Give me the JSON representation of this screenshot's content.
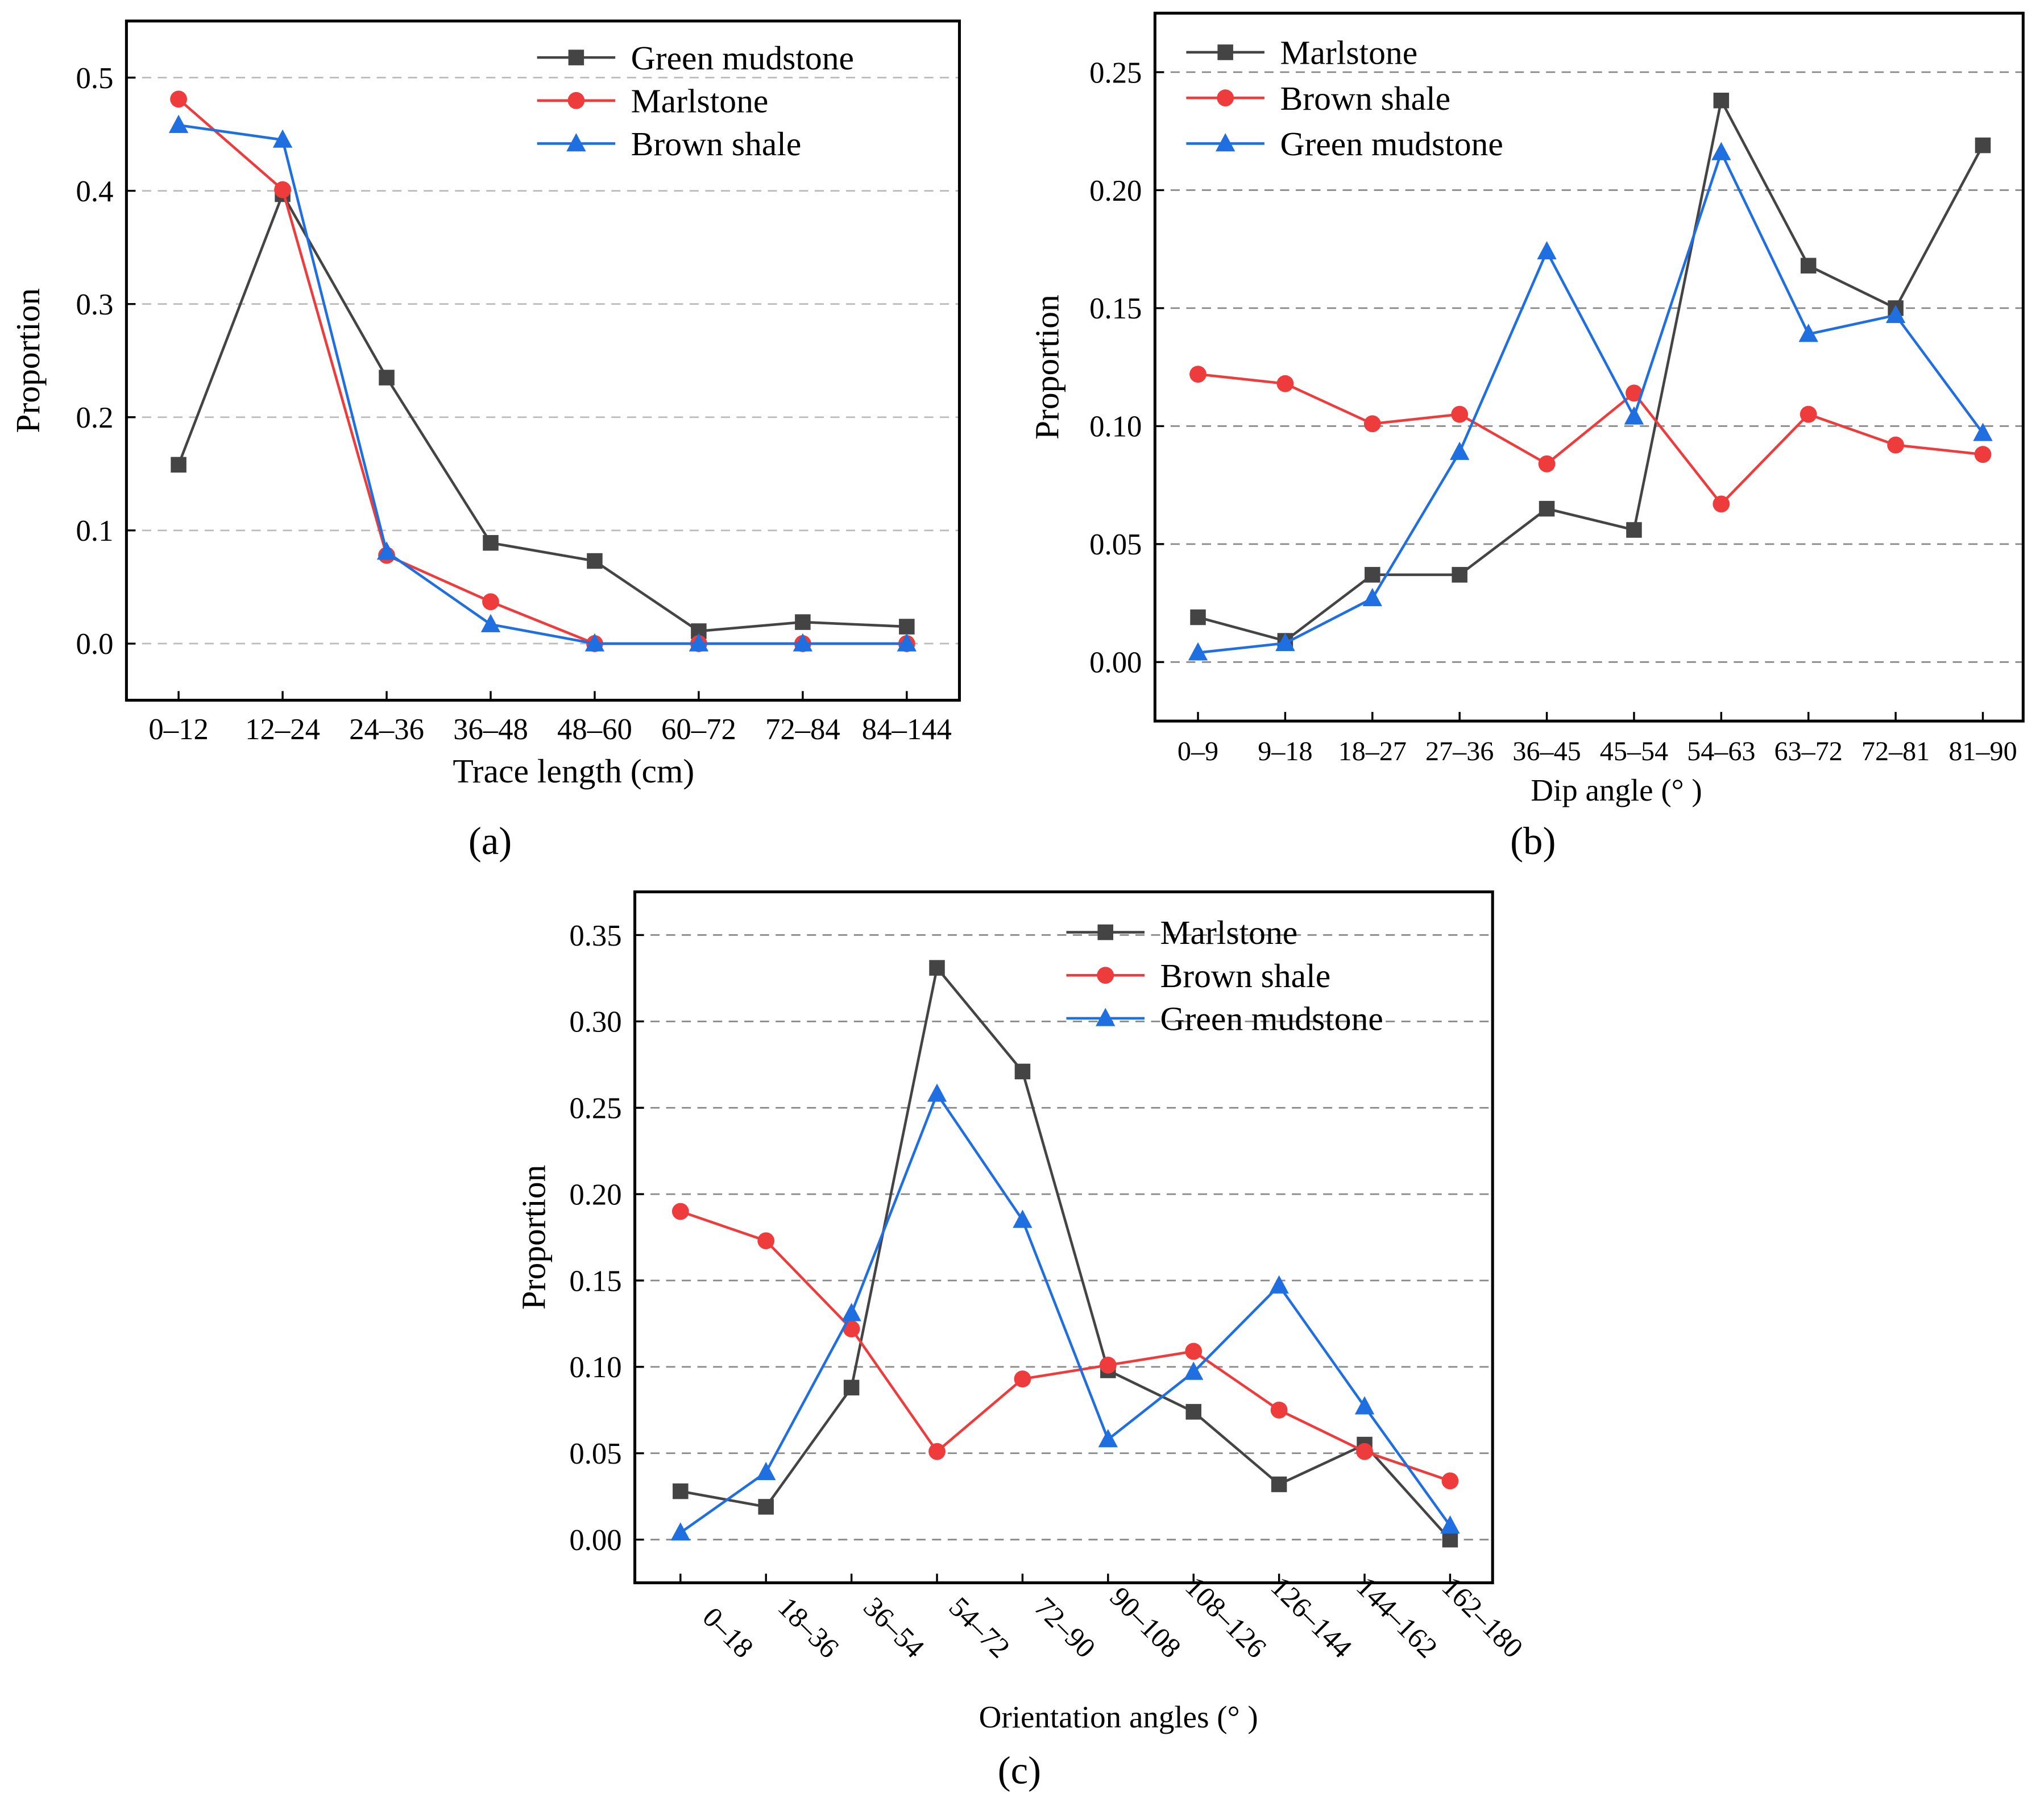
{
  "colors": {
    "black": "#444444",
    "red": "#ee3b3b",
    "blue": "#1f6fe0"
  },
  "chart_data": [
    {
      "type": "line",
      "panel_label": "(a)",
      "xlabel": "Trace length (cm)",
      "ylabel": "Proportion",
      "categories": [
        "0–12",
        "12–24",
        "24–36",
        "36–48",
        "48–60",
        "60–72",
        "72–84",
        "84–144"
      ],
      "ylim": [
        -0.05,
        0.55
      ],
      "yticks": [
        "0.0",
        "0.1",
        "0.2",
        "0.3",
        "0.4",
        "0.5"
      ],
      "ytick_values": [
        0,
        0.1,
        0.2,
        0.3,
        0.4,
        0.5
      ],
      "grid": true,
      "legend": "top-right",
      "series": [
        {
          "name": "Green mudstone",
          "marker": "square",
          "color": "black",
          "values": [
            0.158,
            0.397,
            0.235,
            0.089,
            0.073,
            0.011,
            0.019,
            0.015
          ]
        },
        {
          "name": "Marlstone",
          "marker": "circle",
          "color": "red",
          "values": [
            0.481,
            0.401,
            0.078,
            0.037,
            0,
            0,
            0,
            0
          ]
        },
        {
          "name": "Brown shale",
          "marker": "triangle",
          "color": "blue",
          "values": [
            0.458,
            0.445,
            0.081,
            0.017,
            0,
            0,
            0,
            0
          ]
        }
      ]
    },
    {
      "type": "line",
      "panel_label": "(b)",
      "xlabel": "Dip angle (° )",
      "ylabel": "Proportion",
      "categories": [
        "0–9",
        "9–18",
        "18–27",
        "27–36",
        "36–45",
        "45–54",
        "54–63",
        "63–72",
        "72–81",
        "81–90"
      ],
      "ylim": [
        -0.025,
        0.275
      ],
      "yticks": [
        "0.00",
        "0.05",
        "0.10",
        "0.15",
        "0.20",
        "0.25"
      ],
      "ytick_values": [
        0,
        0.05,
        0.1,
        0.15,
        0.2,
        0.25
      ],
      "grid": true,
      "legend": "top-left",
      "series": [
        {
          "name": "Marlstone",
          "marker": "square",
          "color": "black",
          "values": [
            0.019,
            0.009,
            0.037,
            0.037,
            0.065,
            0.056,
            0.238,
            0.168,
            0.15,
            0.219
          ]
        },
        {
          "name": "Brown shale",
          "marker": "circle",
          "color": "red",
          "values": [
            0.122,
            0.118,
            0.101,
            0.105,
            0.084,
            0.114,
            0.067,
            0.105,
            0.092,
            0.088
          ]
        },
        {
          "name": "Green mudstone",
          "marker": "triangle",
          "color": "blue",
          "values": [
            0.004,
            0.008,
            0.027,
            0.089,
            0.174,
            0.104,
            0.216,
            0.139,
            0.147,
            0.097
          ]
        }
      ]
    },
    {
      "type": "line",
      "panel_label": "(c)",
      "xlabel": "Orientation angles (° )",
      "ylabel": "Proportion",
      "categories": [
        "0–18",
        "18–36",
        "36–54",
        "54–72",
        "72–90",
        "90–108",
        "108–126",
        "126–144",
        "144–162",
        "162–180"
      ],
      "ylim": [
        -0.025,
        0.375
      ],
      "yticks": [
        "0.00",
        "0.05",
        "0.10",
        "0.15",
        "0.20",
        "0.25",
        "0.30",
        "0.35"
      ],
      "ytick_values": [
        0,
        0.05,
        0.1,
        0.15,
        0.2,
        0.25,
        0.3,
        0.35
      ],
      "grid": true,
      "legend": "top-center",
      "series": [
        {
          "name": "Marlstone",
          "marker": "square",
          "color": "black",
          "values": [
            0.028,
            0.019,
            0.088,
            0.331,
            0.271,
            0.098,
            0.074,
            0.032,
            0.055,
            0.0
          ]
        },
        {
          "name": "Brown shale",
          "marker": "circle",
          "color": "red",
          "values": [
            0.19,
            0.173,
            0.122,
            0.051,
            0.093,
            0.101,
            0.109,
            0.075,
            0.051,
            0.034
          ]
        },
        {
          "name": "Green mudstone",
          "marker": "triangle",
          "color": "blue",
          "values": [
            0.004,
            0.039,
            0.131,
            0.258,
            0.185,
            0.058,
            0.097,
            0.147,
            0.077,
            0.008
          ]
        }
      ]
    }
  ]
}
